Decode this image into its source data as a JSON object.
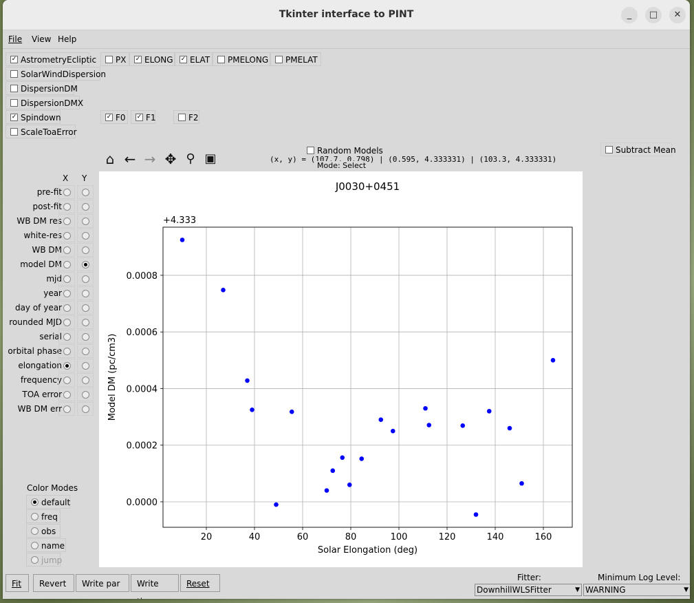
{
  "window": {
    "title": "Tkinter interface to PINT"
  },
  "menu": {
    "file": "File",
    "view": "View",
    "help": "Help"
  },
  "components": {
    "astrometry": {
      "label": "AstrometryEcliptic",
      "checked": true
    },
    "params_astrometry": [
      {
        "label": "PX",
        "checked": false
      },
      {
        "label": "ELONG",
        "checked": true
      },
      {
        "label": "ELAT",
        "checked": true
      },
      {
        "label": "PMELONG",
        "checked": false
      },
      {
        "label": "PMELAT",
        "checked": false
      }
    ],
    "solarwind": {
      "label": "SolarWindDispersion",
      "checked": false
    },
    "dispersiondm": {
      "label": "DispersionDM",
      "checked": false
    },
    "dispersiondmx": {
      "label": "DispersionDMX",
      "checked": false
    },
    "spindown": {
      "label": "Spindown",
      "checked": true
    },
    "params_spindown": [
      {
        "label": "F0",
        "checked": true
      },
      {
        "label": "F1",
        "checked": true
      },
      {
        "label": "F2",
        "checked": false
      }
    ],
    "scaletoa": {
      "label": "ScaleToaError",
      "checked": false
    }
  },
  "axes_select": {
    "x_header": "X",
    "y_header": "Y",
    "rows": [
      "pre-fit",
      "post-fit",
      "WB DM res",
      "white-res",
      "WB DM",
      "model DM",
      "mjd",
      "year",
      "day of year",
      "rounded MJD",
      "serial",
      "orbital phase",
      "elongation",
      "frequency",
      "TOA error",
      "WB DM err"
    ],
    "selected_x": "elongation",
    "selected_y": "model DM"
  },
  "color_modes": {
    "title": "Color Modes",
    "options": [
      "default",
      "freq",
      "obs",
      "name",
      "jump"
    ],
    "selected": "default"
  },
  "toolbar": {
    "random_models": "Random Models",
    "coords": "(x, y) = (107.7, 0.798) | (0.595, 4.333331) | (103.3, 4.333331)",
    "mode": "Mode: Select",
    "subtract_mean": "Subtract Mean"
  },
  "buttons": {
    "fit": "Fit",
    "revert": "Revert",
    "write_par": "Write par",
    "write_tim": "Write tim",
    "reset": "Reset"
  },
  "fitter": {
    "label": "Fitter:",
    "value": "DownhillWLSFitter"
  },
  "loglevel": {
    "label": "Minimum Log Level:",
    "value": "WARNING"
  },
  "chart_data": {
    "type": "scatter",
    "title": "J0030+0451",
    "xlabel": "Solar Elongation (deg)",
    "ylabel": "Model DM (pc/cm3)",
    "offset_text": "+4.333",
    "xlim": [
      2,
      172
    ],
    "ylim": [
      -9e-05,
      0.00097
    ],
    "xticks": [
      20,
      40,
      60,
      80,
      100,
      120,
      140,
      160
    ],
    "yticks": [
      0.0,
      0.0002,
      0.0004,
      0.0006,
      0.0008
    ],
    "ytick_labels": [
      "0.0000",
      "0.0002",
      "0.0004",
      "0.0006",
      "0.0008"
    ],
    "grid": true,
    "color": "#0000ff",
    "points": [
      [
        10.0,
        0.000925
      ],
      [
        27.0,
        0.000748
      ],
      [
        37.0,
        0.000428
      ],
      [
        39.0,
        0.000325
      ],
      [
        49.0,
        -1e-05
      ],
      [
        55.5,
        0.000318
      ],
      [
        70.0,
        4e-05
      ],
      [
        72.5,
        0.00011
      ],
      [
        76.5,
        0.000156
      ],
      [
        79.5,
        6e-05
      ],
      [
        84.5,
        0.000152
      ],
      [
        92.5,
        0.00029
      ],
      [
        97.5,
        0.00025
      ],
      [
        111.0,
        0.00033
      ],
      [
        112.5,
        0.000271
      ],
      [
        126.5,
        0.000269
      ],
      [
        132.0,
        -4.5e-05
      ],
      [
        137.5,
        0.00032
      ],
      [
        146.0,
        0.00026
      ],
      [
        151.0,
        6.5e-05
      ],
      [
        164.0,
        0.0005
      ]
    ]
  }
}
